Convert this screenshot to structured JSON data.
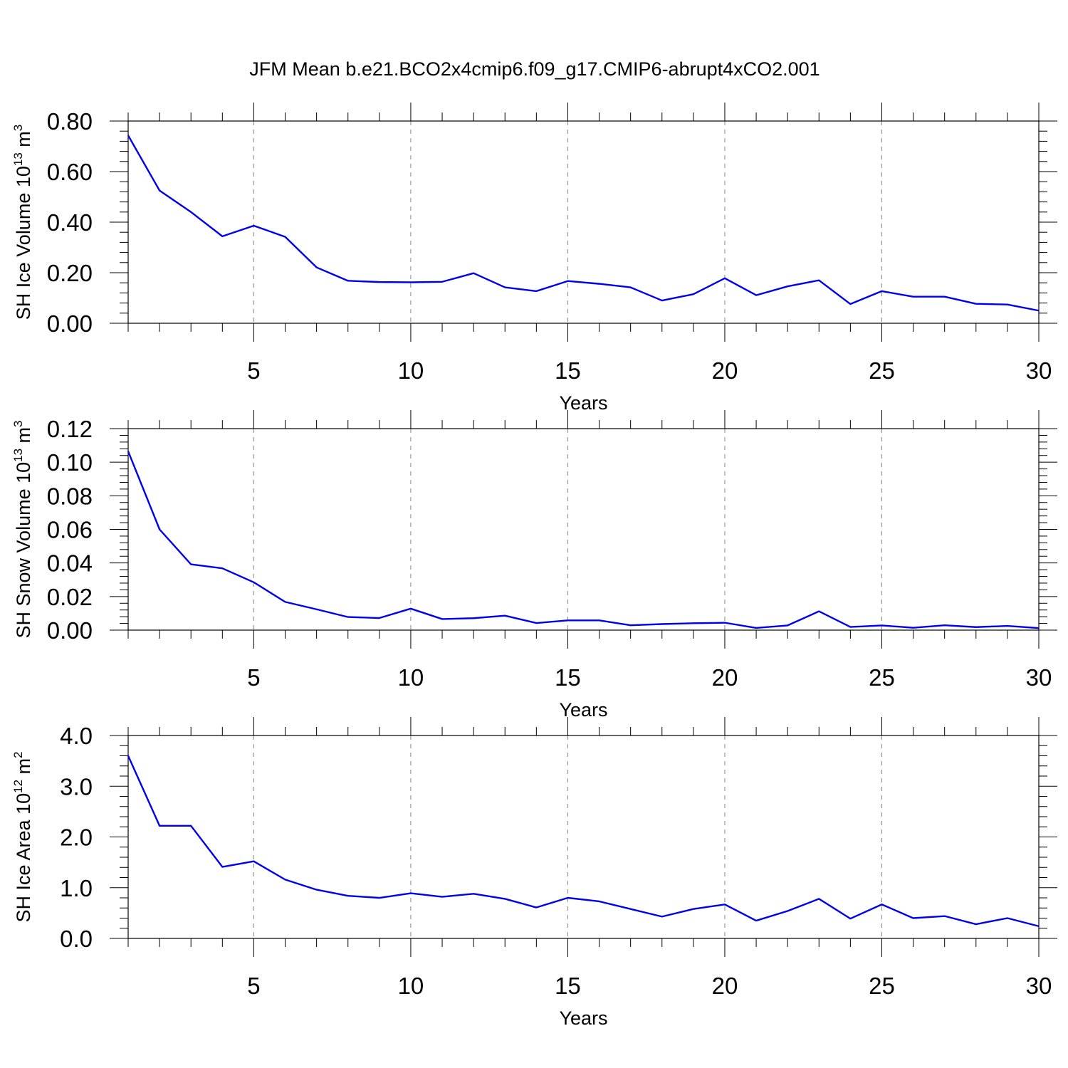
{
  "title": "JFM Mean b.e21.BCO2x4cmip6.f09_g17.CMIP6-abrupt4xCO2.001",
  "colors": {
    "series": "#0000ee",
    "grid": "#888888",
    "axis": "#000000"
  },
  "chart_data": [
    {
      "type": "line",
      "ylabel": {
        "main": "SH Ice Volume 10",
        "sup1": "13",
        "unit": " m",
        "sup2": "3"
      },
      "xlabel": "Years",
      "xlim": [
        1,
        30
      ],
      "ylim": [
        0,
        0.8
      ],
      "x_ticks": [
        5,
        10,
        15,
        20,
        25,
        30
      ],
      "x_tick_labels": [
        "5",
        "10",
        "15",
        "20",
        "25",
        "30"
      ],
      "y_ticks": [
        0,
        0.2,
        0.4,
        0.6,
        0.8
      ],
      "y_tick_labels": [
        "0.00",
        "0.20",
        "0.40",
        "0.60",
        "0.80"
      ],
      "y_minor_step": 0.04,
      "grid": "vertical dashed at major x ticks",
      "x": [
        1,
        2,
        3,
        4,
        5,
        6,
        7,
        8,
        9,
        10,
        11,
        12,
        13,
        14,
        15,
        16,
        17,
        18,
        19,
        20,
        21,
        22,
        23,
        24,
        25,
        26,
        27,
        28,
        29,
        30
      ],
      "series": [
        {
          "name": "SH Ice Volume",
          "values": [
            0.743,
            0.525,
            0.44,
            0.344,
            0.386,
            0.342,
            0.221,
            0.168,
            0.163,
            0.162,
            0.164,
            0.198,
            0.142,
            0.127,
            0.167,
            0.156,
            0.142,
            0.09,
            0.115,
            0.178,
            0.111,
            0.146,
            0.17,
            0.076,
            0.127,
            0.105,
            0.105,
            0.077,
            0.074,
            0.05
          ]
        }
      ]
    },
    {
      "type": "line",
      "ylabel": {
        "main": "SH Snow Volume 10",
        "sup1": "13",
        "unit": " m",
        "sup2": "3"
      },
      "xlabel": "Years",
      "xlim": [
        1,
        30
      ],
      "ylim": [
        0,
        0.12
      ],
      "x_ticks": [
        5,
        10,
        15,
        20,
        25,
        30
      ],
      "x_tick_labels": [
        "5",
        "10",
        "15",
        "20",
        "25",
        "30"
      ],
      "y_ticks": [
        0,
        0.02,
        0.04,
        0.06,
        0.08,
        0.1,
        0.12
      ],
      "y_tick_labels": [
        "0.00",
        "0.02",
        "0.04",
        "0.06",
        "0.08",
        "0.10",
        "0.12"
      ],
      "y_minor_step": 0.004,
      "grid": "vertical dashed at major x ticks",
      "x": [
        1,
        2,
        3,
        4,
        5,
        6,
        7,
        8,
        9,
        10,
        11,
        12,
        13,
        14,
        15,
        16,
        17,
        18,
        19,
        20,
        21,
        22,
        23,
        24,
        25,
        26,
        27,
        28,
        29,
        30
      ],
      "series": [
        {
          "name": "SH Snow Volume",
          "values": [
            0.1065,
            0.06,
            0.0392,
            0.0368,
            0.0285,
            0.0168,
            0.0124,
            0.0078,
            0.0072,
            0.0128,
            0.0066,
            0.0071,
            0.0086,
            0.0042,
            0.0058,
            0.0058,
            0.0029,
            0.0036,
            0.0041,
            0.0044,
            0.0013,
            0.0028,
            0.0112,
            0.0019,
            0.0028,
            0.0014,
            0.0029,
            0.0018,
            0.0025,
            0.0012
          ]
        }
      ]
    },
    {
      "type": "line",
      "ylabel": {
        "main": "SH Ice Area 10",
        "sup1": "12",
        "unit": " m",
        "sup2": "2"
      },
      "xlabel": "Years",
      "xlim": [
        1,
        30
      ],
      "ylim": [
        0,
        4
      ],
      "x_ticks": [
        5,
        10,
        15,
        20,
        25,
        30
      ],
      "x_tick_labels": [
        "5",
        "10",
        "15",
        "20",
        "25",
        "30"
      ],
      "y_ticks": [
        0,
        1,
        2,
        3,
        4
      ],
      "y_tick_labels": [
        "0.0",
        "1.0",
        "2.0",
        "3.0",
        "4.0"
      ],
      "y_minor_step": 0.2,
      "grid": "vertical dashed at major x ticks",
      "x": [
        1,
        2,
        3,
        4,
        5,
        6,
        7,
        8,
        9,
        10,
        11,
        12,
        13,
        14,
        15,
        16,
        17,
        18,
        19,
        20,
        21,
        22,
        23,
        24,
        25,
        26,
        27,
        28,
        29,
        30
      ],
      "series": [
        {
          "name": "SH Ice Area",
          "values": [
            3.6,
            2.22,
            2.22,
            1.41,
            1.52,
            1.16,
            0.96,
            0.84,
            0.8,
            0.89,
            0.82,
            0.88,
            0.78,
            0.61,
            0.8,
            0.73,
            0.58,
            0.43,
            0.58,
            0.67,
            0.35,
            0.54,
            0.78,
            0.39,
            0.67,
            0.4,
            0.44,
            0.28,
            0.4,
            0.24
          ]
        }
      ]
    }
  ]
}
